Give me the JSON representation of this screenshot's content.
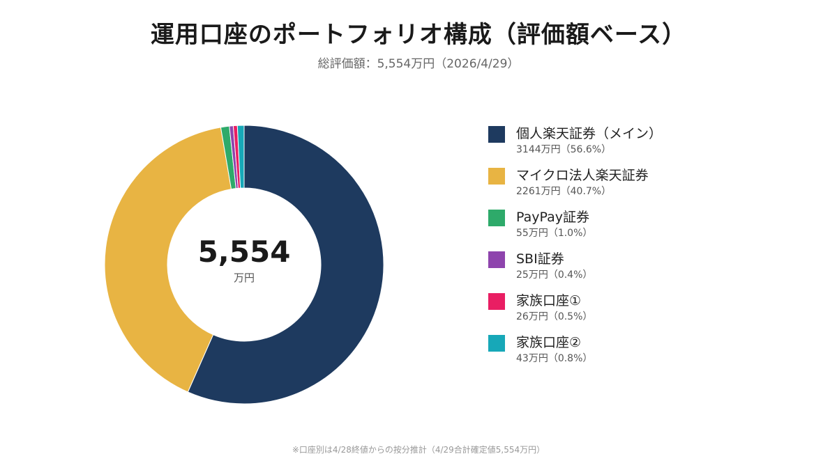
{
  "header": {
    "title": "運用口座のポートフォリオ構成（評価額ベース）",
    "subtitle": "総評価額：5,554万円（2026/4/29）"
  },
  "center": {
    "value": "5,554",
    "unit": "万円"
  },
  "chart_data": {
    "type": "pie",
    "variant": "donut",
    "total": 5554,
    "unit": "万円",
    "legend_position": "right",
    "slices": [
      {
        "label": "個人楽天証券（メイン）",
        "value": 3144,
        "percent": 56.6,
        "color": "#1e3a5f",
        "detail": "3144万円（56.6%）"
      },
      {
        "label": "マイクロ法人楽天証券",
        "value": 2261,
        "percent": 40.7,
        "color": "#e8b443",
        "detail": "2261万円（40.7%）"
      },
      {
        "label": "PayPay証券",
        "value": 55,
        "percent": 1.0,
        "color": "#2eaa6a",
        "detail": "55万円（1.0%）"
      },
      {
        "label": "SBI証券",
        "value": 25,
        "percent": 0.4,
        "color": "#8e44ad",
        "detail": "25万円（0.4%）"
      },
      {
        "label": "家族口座①",
        "value": 26,
        "percent": 0.5,
        "color": "#e91e63",
        "detail": "26万円（0.5%）"
      },
      {
        "label": "家族口座②",
        "value": 43,
        "percent": 0.8,
        "color": "#17a8b8",
        "detail": "43万円（0.8%）"
      }
    ]
  },
  "footnote": "※口座別は4/28終値からの按分推計（4/29合計確定値5,554万円）"
}
